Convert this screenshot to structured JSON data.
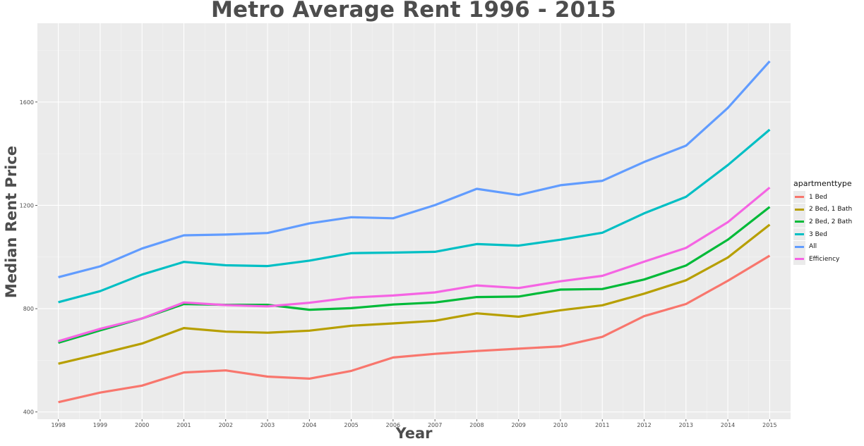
{
  "chart_data": {
    "type": "line",
    "title": "Metro Average Rent 1996 - 2015",
    "xlabel": "Year",
    "ylabel": "Median Rent Price",
    "x": [
      1998,
      1999,
      2000,
      2001,
      2002,
      2003,
      2004,
      2005,
      2006,
      2007,
      2008,
      2009,
      2010,
      2011,
      2012,
      2013,
      2014,
      2015
    ],
    "xlim": [
      1997.5,
      2015.5
    ],
    "ylim": [
      372,
      1905
    ],
    "yticks": [
      400,
      800,
      1200,
      1600
    ],
    "grid": true,
    "legend": {
      "title": "apartmenttype",
      "position": "right"
    },
    "series": [
      {
        "name": "1 Bed",
        "color": "#f8766d",
        "values": [
          438,
          475,
          502,
          553,
          561,
          537,
          529,
          559,
          611,
          625,
          636,
          645,
          654,
          691,
          771,
          818,
          908,
          1005
        ]
      },
      {
        "name": "2 Bed, 1 Bath",
        "color": "#b79f00",
        "values": [
          587,
          625,
          665,
          725,
          711,
          707,
          715,
          734,
          743,
          753,
          782,
          769,
          794,
          813,
          858,
          910,
          998,
          1125
        ]
      },
      {
        "name": "2 Bed, 2 Bath",
        "color": "#00ba38",
        "values": [
          668,
          716,
          762,
          818,
          815,
          815,
          796,
          802,
          816,
          824,
          845,
          847,
          874,
          876,
          913,
          967,
          1067,
          1194
        ]
      },
      {
        "name": "3 Bed",
        "color": "#00bfc4",
        "values": [
          825,
          868,
          932,
          981,
          968,
          965,
          986,
          1015,
          1017,
          1020,
          1050,
          1044,
          1067,
          1094,
          1169,
          1233,
          1356,
          1493
        ]
      },
      {
        "name": "All",
        "color": "#619cff",
        "values": [
          922,
          964,
          1033,
          1084,
          1087,
          1093,
          1130,
          1154,
          1150,
          1201,
          1264,
          1240,
          1278,
          1295,
          1368,
          1431,
          1577,
          1758
        ]
      },
      {
        "name": "Efficiency",
        "color": "#f564e3",
        "values": [
          674,
          722,
          762,
          824,
          814,
          809,
          823,
          843,
          851,
          863,
          890,
          880,
          906,
          927,
          982,
          1035,
          1135,
          1269
        ]
      }
    ]
  }
}
